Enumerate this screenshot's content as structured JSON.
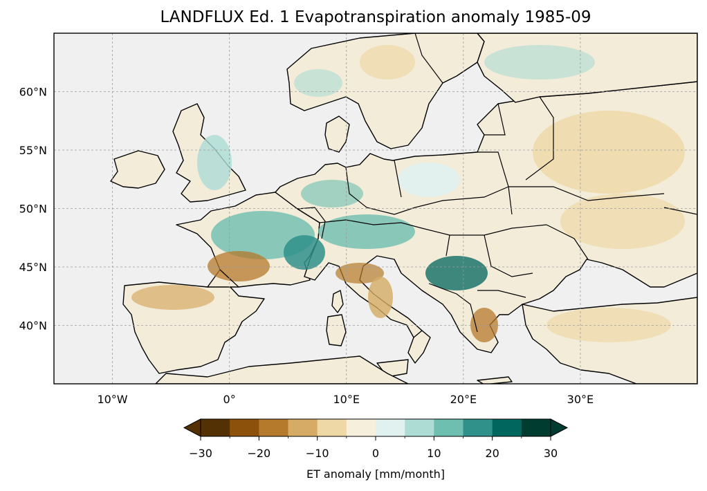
{
  "title": "LANDFLUX Ed. 1 Evapotranspiration anomaly 1985-09",
  "map": {
    "lon_range": [
      -15,
      40
    ],
    "lat_range": [
      35,
      65
    ],
    "lon_ticks": [
      {
        "value": -10,
        "label": "10°W"
      },
      {
        "value": 0,
        "label": "0°"
      },
      {
        "value": 10,
        "label": "10°E"
      },
      {
        "value": 20,
        "label": "20°E"
      },
      {
        "value": 30,
        "label": "30°E"
      }
    ],
    "lat_ticks": [
      {
        "value": 40,
        "label": "40°N"
      },
      {
        "value": 45,
        "label": "45°N"
      },
      {
        "value": 50,
        "label": "50°N"
      },
      {
        "value": 55,
        "label": "55°N"
      },
      {
        "value": 60,
        "label": "60°N"
      }
    ],
    "gridlines": true,
    "ocean_color": "#f0f0f0"
  },
  "colorbar": {
    "label": "ET anomaly [mm/month]",
    "min": -30,
    "max": 30,
    "boundaries": [
      -30,
      -25,
      -20,
      -15,
      -10,
      -5,
      0,
      5,
      10,
      15,
      20,
      25,
      30
    ],
    "tick_labels": [
      "−30",
      "−20",
      "−10",
      "0",
      "10",
      "20",
      "30"
    ],
    "tick_values": [
      -30,
      -20,
      -10,
      0,
      10,
      20,
      30
    ],
    "extend": "both",
    "under_color": "#543005",
    "over_color": "#003c30",
    "colors": [
      "#543005",
      "#8c510a",
      "#b57a2b",
      "#d5ab65",
      "#eed8a6",
      "#f5efdc",
      "#e0f1ef",
      "#acdcd4",
      "#6ebfb0",
      "#2f9189",
      "#01665e",
      "#003c30"
    ]
  }
}
